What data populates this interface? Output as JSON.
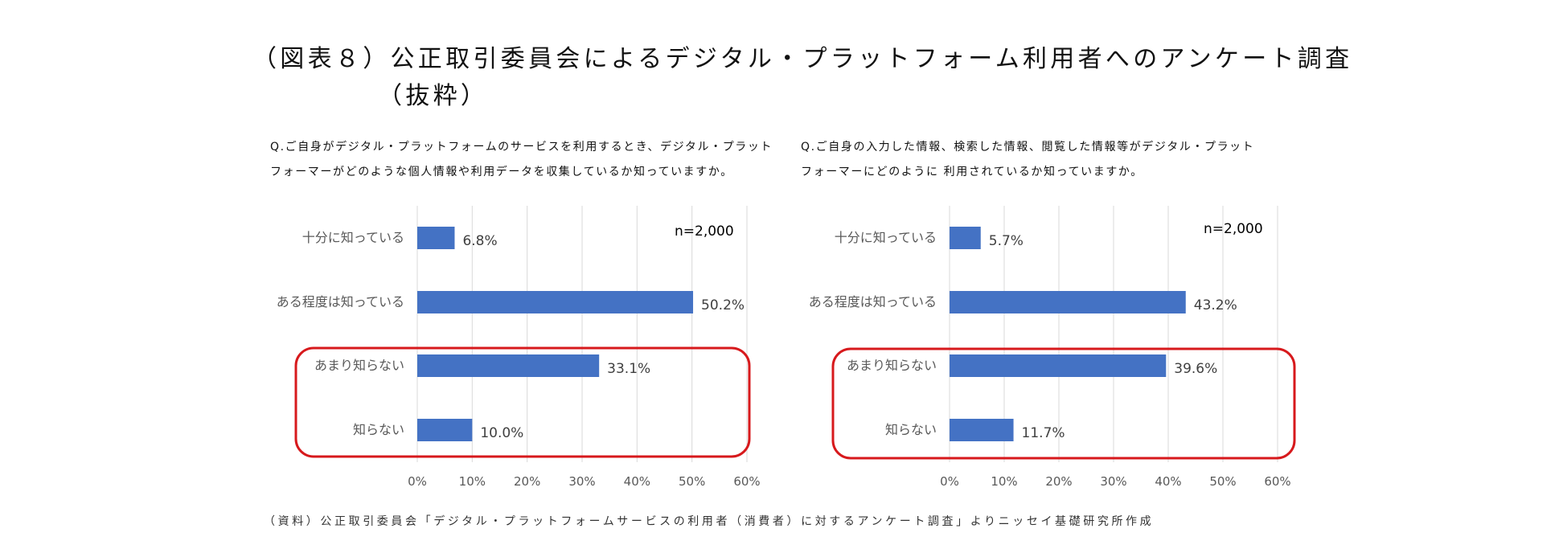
{
  "title_line1": "（図表８）公正取引委員会によるデジタル・プラットフォーム利用者へのアンケート調査",
  "title_line2": "（抜粋）",
  "footnote": "（資料）公正取引委員会「デジタル・プラットフォームサービスの利用者（消費者）に対するアンケート調査」よりニッセイ基礎研究所作成",
  "colors": {
    "bar": "#4472C4",
    "highlight_box": "#D7191C",
    "grid": "#D9D9D9"
  },
  "chart_data": [
    {
      "type": "bar",
      "orientation": "horizontal",
      "question_line1": "Q.ご自身がデジタル・プラットフォームのサービスを利用するとき、デジタル・プラット",
      "question_line2": "フォーマーがどのような個人情報や利用データを収集しているか知っていますか。",
      "annotation": "n=2,000",
      "categories": [
        "十分に知っている",
        "ある程度は知っている",
        "あまり知らない",
        "知らない"
      ],
      "values": [
        6.8,
        50.2,
        33.1,
        10.0
      ],
      "value_labels": [
        "6.8%",
        "50.2%",
        "33.1%",
        "10.0%"
      ],
      "xlim": [
        0,
        60
      ],
      "ticks": [
        "0%",
        "10%",
        "20%",
        "30%",
        "40%",
        "50%",
        "60%"
      ],
      "grid": true,
      "highlighted_categories": [
        "あまり知らない",
        "知らない"
      ]
    },
    {
      "type": "bar",
      "orientation": "horizontal",
      "question_line1": "Q.ご自身の入力した情報、検索した情報、閲覧した情報等がデジタル・プラット",
      "question_line2": "フォーマーにどのように 利用されているか知っていますか。",
      "annotation": "n=2,000",
      "categories": [
        "十分に知っている",
        "ある程度は知っている",
        "あまり知らない",
        "知らない"
      ],
      "values": [
        5.7,
        43.2,
        39.6,
        11.7
      ],
      "value_labels": [
        "5.7%",
        "43.2%",
        "39.6%",
        "11.7%"
      ],
      "xlim": [
        0,
        60
      ],
      "ticks": [
        "0%",
        "10%",
        "20%",
        "30%",
        "40%",
        "50%",
        "60%"
      ],
      "grid": true,
      "highlighted_categories": [
        "あまり知らない",
        "知らない"
      ]
    }
  ]
}
